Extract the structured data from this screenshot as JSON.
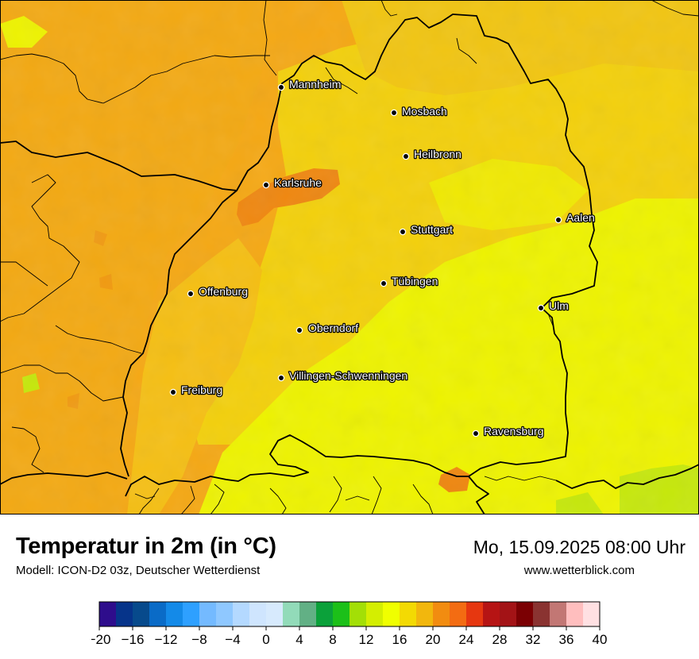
{
  "map": {
    "region": "Baden-Württemberg",
    "cities": [
      {
        "name": "Mannheim"
      },
      {
        "name": "Mosbach"
      },
      {
        "name": "Heilbronn"
      },
      {
        "name": "Karlsruhe"
      },
      {
        "name": "Aalen"
      },
      {
        "name": "Stuttgart"
      },
      {
        "name": "Tübingen"
      },
      {
        "name": "Offenburg"
      },
      {
        "name": "Ulm"
      },
      {
        "name": "Oberndorf"
      },
      {
        "name": "Villingen-Schwenningen"
      },
      {
        "name": "Freiburg"
      },
      {
        "name": "Ravensburg"
      }
    ]
  },
  "footer": {
    "title": "Temperatur in 2m (in °C)",
    "model": "Modell: ICON-D2 03z, Deutscher Wetterdienst",
    "datetime": "Mo, 15.09.2025 08:00 Uhr",
    "website": "www.wetterblick.com"
  },
  "color_scale": {
    "unit": "°C",
    "min": -20,
    "max": 40,
    "step": 2,
    "tick_labels": [
      "−20",
      "−16",
      "−12",
      "−8",
      "−4",
      "0",
      "4",
      "8",
      "12",
      "16",
      "20",
      "24",
      "28",
      "32",
      "36",
      "40"
    ],
    "colors": [
      "#2e0d8c",
      "#06348a",
      "#074a8c",
      "#0a6bc7",
      "#148ae8",
      "#2ea0ff",
      "#74baff",
      "#8fc8ff",
      "#b4d9ff",
      "#cfe5fe",
      "#d7eafd",
      "#92dbb9",
      "#62b085",
      "#0ba13a",
      "#1cc019",
      "#a3df06",
      "#d4ee01",
      "#f0ff00",
      "#f3da03",
      "#f2b70d",
      "#f28c10",
      "#f36c12",
      "#e63710",
      "#b61414",
      "#a31316",
      "#7b0003",
      "#8a3331",
      "#c27774",
      "#ffbebe",
      "#ffe0e2"
    ]
  },
  "temperature_palette": {
    "warmest": "#f08a10",
    "warm": "#f5a814",
    "mild": "#f5c016",
    "moderate": "#f2d20e",
    "cool": "#ecf200",
    "coolest": "#c8e80a"
  }
}
